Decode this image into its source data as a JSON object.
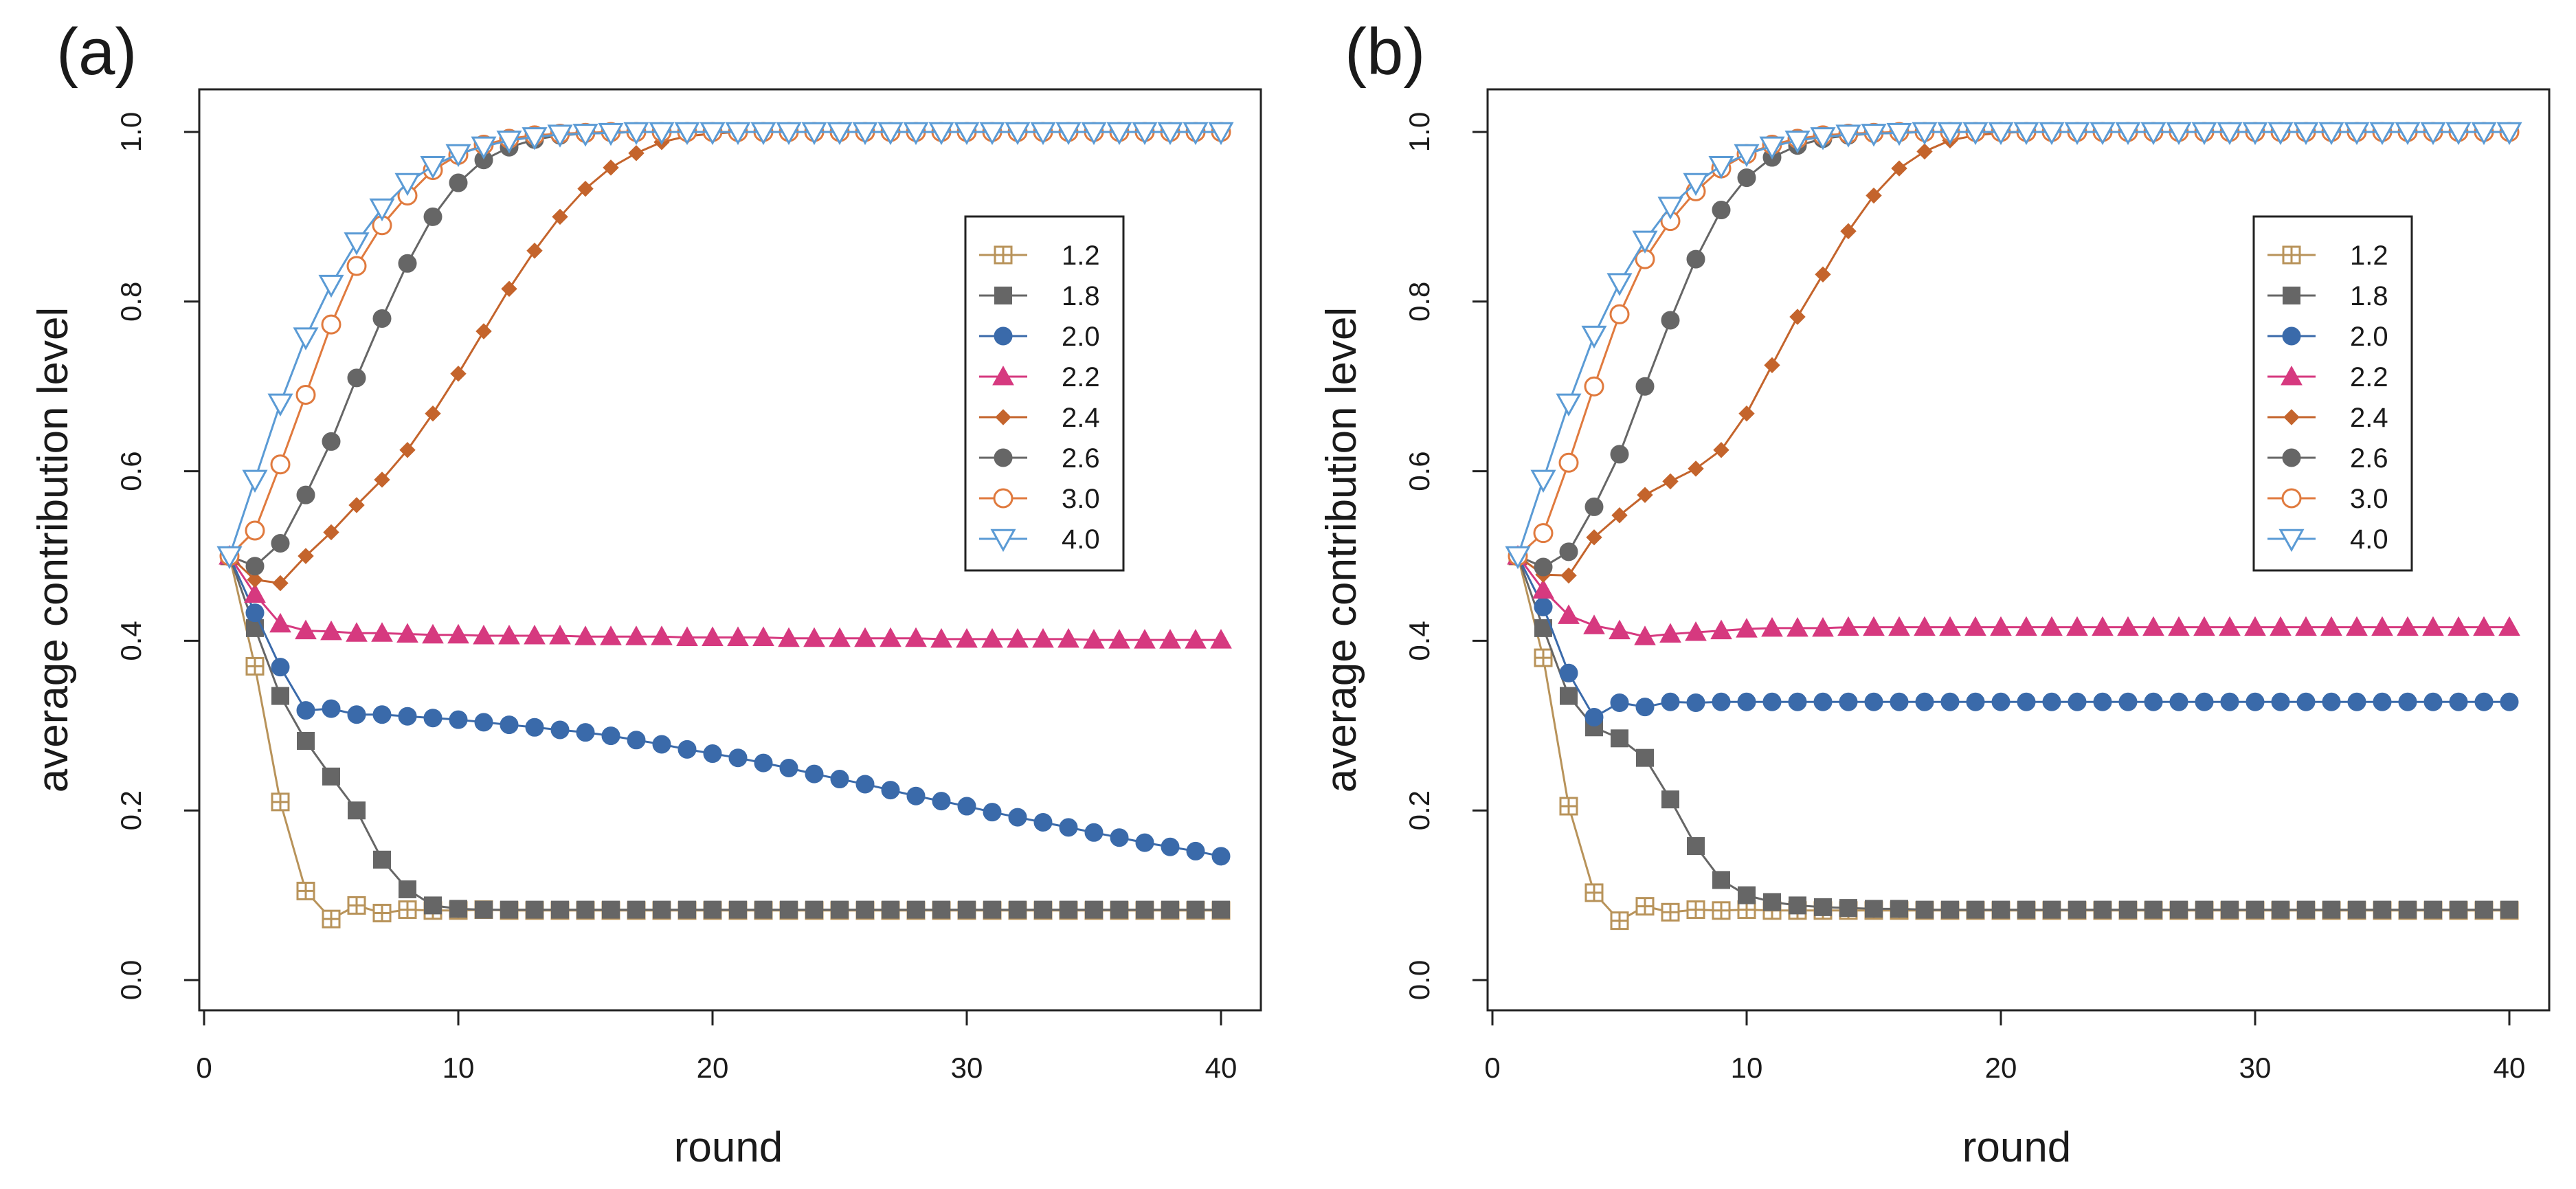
{
  "chart_data": [
    {
      "type": "line",
      "panel_label": "(a)",
      "xlabel": "round",
      "ylabel": "average contribution level",
      "xlim": [
        1,
        40
      ],
      "ylim": [
        0,
        1
      ],
      "x_ticks": [
        "0",
        "10",
        "20",
        "30",
        "40"
      ],
      "y_ticks": [
        "0.0",
        "0.2",
        "0.4",
        "0.6",
        "0.8",
        "1.0"
      ],
      "legend_position": "right",
      "series": [
        {
          "name": "1.2",
          "color": "#b8935a",
          "marker": "square-cross",
          "values": [
            0.5,
            0.37,
            0.21,
            0.105,
            0.072,
            0.088,
            0.079,
            0.083,
            0.082,
            0.082,
            0.083,
            0.082,
            0.082,
            0.082,
            0.082,
            0.082,
            0.082,
            0.082,
            0.082,
            0.082,
            0.082,
            0.082,
            0.082,
            0.082,
            0.082,
            0.082,
            0.082,
            0.082,
            0.082,
            0.082,
            0.082,
            0.082,
            0.082,
            0.082,
            0.082,
            0.082,
            0.082,
            0.082,
            0.082,
            0.082
          ]
        },
        {
          "name": "1.8",
          "color": "#666666",
          "marker": "filled-square",
          "values": [
            0.5,
            0.415,
            0.335,
            0.282,
            0.24,
            0.2,
            0.142,
            0.107,
            0.088,
            0.084,
            0.083,
            0.083,
            0.083,
            0.083,
            0.083,
            0.083,
            0.083,
            0.083,
            0.083,
            0.083,
            0.083,
            0.083,
            0.083,
            0.083,
            0.083,
            0.083,
            0.083,
            0.083,
            0.083,
            0.083,
            0.083,
            0.083,
            0.083,
            0.083,
            0.083,
            0.083,
            0.083,
            0.083,
            0.083,
            0.083
          ]
        },
        {
          "name": "2.0",
          "color": "#3a6aaa",
          "marker": "filled-circle",
          "values": [
            0.5,
            0.433,
            0.369,
            0.318,
            0.32,
            0.313,
            0.313,
            0.311,
            0.309,
            0.307,
            0.304,
            0.301,
            0.298,
            0.295,
            0.292,
            0.288,
            0.283,
            0.278,
            0.272,
            0.267,
            0.262,
            0.256,
            0.25,
            0.243,
            0.237,
            0.231,
            0.224,
            0.217,
            0.211,
            0.205,
            0.198,
            0.192,
            0.186,
            0.18,
            0.174,
            0.168,
            0.162,
            0.157,
            0.152,
            0.146
          ]
        },
        {
          "name": "2.2",
          "color": "#d6397f",
          "marker": "filled-triangle",
          "values": [
            0.5,
            0.455,
            0.42,
            0.412,
            0.411,
            0.409,
            0.409,
            0.408,
            0.407,
            0.407,
            0.406,
            0.406,
            0.406,
            0.406,
            0.405,
            0.405,
            0.405,
            0.405,
            0.404,
            0.404,
            0.404,
            0.404,
            0.403,
            0.403,
            0.403,
            0.403,
            0.403,
            0.403,
            0.402,
            0.402,
            0.402,
            0.402,
            0.402,
            0.402,
            0.401,
            0.401,
            0.401,
            0.401,
            0.401,
            0.401
          ]
        },
        {
          "name": "2.4",
          "color": "#c4642c",
          "marker": "filled-diamond",
          "values": [
            0.5,
            0.472,
            0.468,
            0.5,
            0.528,
            0.56,
            0.59,
            0.625,
            0.668,
            0.715,
            0.765,
            0.815,
            0.86,
            0.9,
            0.933,
            0.958,
            0.975,
            0.988,
            0.995,
            0.998,
            1.0,
            1.0,
            1.0,
            1.0,
            1.0,
            1.0,
            1.0,
            1.0,
            1.0,
            1.0,
            1.0,
            1.0,
            1.0,
            1.0,
            1.0,
            1.0,
            1.0,
            1.0,
            1.0,
            1.0
          ]
        },
        {
          "name": "2.6",
          "color": "#666666",
          "marker": "filled-circle",
          "values": [
            0.5,
            0.488,
            0.515,
            0.572,
            0.635,
            0.71,
            0.78,
            0.845,
            0.9,
            0.94,
            0.967,
            0.982,
            0.991,
            0.996,
            0.998,
            0.999,
            1.0,
            1.0,
            1.0,
            1.0,
            1.0,
            1.0,
            1.0,
            1.0,
            1.0,
            1.0,
            1.0,
            1.0,
            1.0,
            1.0,
            1.0,
            1.0,
            1.0,
            1.0,
            1.0,
            1.0,
            1.0,
            1.0,
            1.0,
            1.0
          ]
        },
        {
          "name": "3.0",
          "color": "#e07a3e",
          "marker": "open-circle",
          "values": [
            0.5,
            0.53,
            0.608,
            0.69,
            0.773,
            0.842,
            0.89,
            0.925,
            0.955,
            0.973,
            0.985,
            0.992,
            0.996,
            0.998,
            0.999,
            1.0,
            1.0,
            1.0,
            1.0,
            1.0,
            1.0,
            1.0,
            1.0,
            1.0,
            1.0,
            1.0,
            1.0,
            1.0,
            1.0,
            1.0,
            1.0,
            1.0,
            1.0,
            1.0,
            1.0,
            1.0,
            1.0,
            1.0,
            1.0,
            1.0
          ]
        },
        {
          "name": "4.0",
          "color": "#5b9bd5",
          "marker": "open-triangle-down",
          "values": [
            0.5,
            0.59,
            0.68,
            0.758,
            0.82,
            0.87,
            0.91,
            0.94,
            0.96,
            0.974,
            0.983,
            0.99,
            0.994,
            0.997,
            0.998,
            0.999,
            1.0,
            1.0,
            1.0,
            1.0,
            1.0,
            1.0,
            1.0,
            1.0,
            1.0,
            1.0,
            1.0,
            1.0,
            1.0,
            1.0,
            1.0,
            1.0,
            1.0,
            1.0,
            1.0,
            1.0,
            1.0,
            1.0,
            1.0,
            1.0
          ]
        }
      ]
    },
    {
      "type": "line",
      "panel_label": "(b)",
      "xlabel": "round",
      "ylabel": "average contribution level",
      "xlim": [
        1,
        40
      ],
      "ylim": [
        0,
        1
      ],
      "x_ticks": [
        "0",
        "10",
        "20",
        "30",
        "40"
      ],
      "y_ticks": [
        "0.0",
        "0.2",
        "0.4",
        "0.6",
        "0.8",
        "1.0"
      ],
      "legend_position": "right",
      "series": [
        {
          "name": "1.2",
          "color": "#b8935a",
          "marker": "square-cross",
          "values": [
            0.5,
            0.38,
            0.205,
            0.103,
            0.07,
            0.087,
            0.08,
            0.083,
            0.082,
            0.083,
            0.082,
            0.082,
            0.082,
            0.082,
            0.082,
            0.082,
            0.082,
            0.082,
            0.082,
            0.082,
            0.082,
            0.082,
            0.082,
            0.082,
            0.082,
            0.082,
            0.082,
            0.082,
            0.082,
            0.082,
            0.082,
            0.082,
            0.082,
            0.082,
            0.082,
            0.082,
            0.082,
            0.082,
            0.082,
            0.082
          ]
        },
        {
          "name": "1.8",
          "color": "#666666",
          "marker": "filled-square",
          "values": [
            0.5,
            0.415,
            0.335,
            0.298,
            0.285,
            0.262,
            0.213,
            0.158,
            0.118,
            0.1,
            0.092,
            0.088,
            0.086,
            0.085,
            0.084,
            0.084,
            0.083,
            0.083,
            0.083,
            0.083,
            0.083,
            0.083,
            0.083,
            0.083,
            0.083,
            0.083,
            0.083,
            0.083,
            0.083,
            0.083,
            0.083,
            0.083,
            0.083,
            0.083,
            0.083,
            0.083,
            0.083,
            0.083,
            0.083,
            0.083
          ]
        },
        {
          "name": "2.0",
          "color": "#3a6aaa",
          "marker": "filled-circle",
          "values": [
            0.5,
            0.44,
            0.362,
            0.31,
            0.327,
            0.322,
            0.328,
            0.327,
            0.328,
            0.328,
            0.328,
            0.328,
            0.328,
            0.328,
            0.328,
            0.328,
            0.328,
            0.328,
            0.328,
            0.328,
            0.328,
            0.328,
            0.328,
            0.328,
            0.328,
            0.328,
            0.328,
            0.328,
            0.328,
            0.328,
            0.328,
            0.328,
            0.328,
            0.328,
            0.328,
            0.328,
            0.328,
            0.328,
            0.328,
            0.328
          ]
        },
        {
          "name": "2.2",
          "color": "#d6397f",
          "marker": "filled-triangle",
          "values": [
            0.5,
            0.46,
            0.43,
            0.418,
            0.412,
            0.405,
            0.408,
            0.41,
            0.412,
            0.414,
            0.415,
            0.415,
            0.415,
            0.416,
            0.416,
            0.416,
            0.416,
            0.416,
            0.416,
            0.416,
            0.416,
            0.416,
            0.416,
            0.416,
            0.416,
            0.416,
            0.416,
            0.416,
            0.416,
            0.416,
            0.416,
            0.416,
            0.416,
            0.416,
            0.416,
            0.416,
            0.416,
            0.416,
            0.416,
            0.416
          ]
        },
        {
          "name": "2.4",
          "color": "#c4642c",
          "marker": "filled-diamond",
          "values": [
            0.5,
            0.478,
            0.477,
            0.522,
            0.548,
            0.572,
            0.588,
            0.603,
            0.625,
            0.668,
            0.725,
            0.782,
            0.832,
            0.883,
            0.925,
            0.957,
            0.977,
            0.99,
            0.996,
            0.999,
            1.0,
            1.0,
            1.0,
            1.0,
            1.0,
            1.0,
            1.0,
            1.0,
            1.0,
            1.0,
            1.0,
            1.0,
            1.0,
            1.0,
            1.0,
            1.0,
            1.0,
            1.0,
            1.0,
            1.0
          ]
        },
        {
          "name": "2.6",
          "color": "#666666",
          "marker": "filled-circle",
          "values": [
            0.5,
            0.487,
            0.505,
            0.558,
            0.62,
            0.7,
            0.778,
            0.85,
            0.908,
            0.946,
            0.97,
            0.984,
            0.992,
            0.996,
            0.998,
            0.999,
            1.0,
            1.0,
            1.0,
            1.0,
            1.0,
            1.0,
            1.0,
            1.0,
            1.0,
            1.0,
            1.0,
            1.0,
            1.0,
            1.0,
            1.0,
            1.0,
            1.0,
            1.0,
            1.0,
            1.0,
            1.0,
            1.0,
            1.0,
            1.0
          ]
        },
        {
          "name": "3.0",
          "color": "#e07a3e",
          "marker": "open-circle",
          "values": [
            0.5,
            0.527,
            0.61,
            0.7,
            0.785,
            0.85,
            0.895,
            0.93,
            0.957,
            0.974,
            0.985,
            0.992,
            0.996,
            0.998,
            0.999,
            1.0,
            1.0,
            1.0,
            1.0,
            1.0,
            1.0,
            1.0,
            1.0,
            1.0,
            1.0,
            1.0,
            1.0,
            1.0,
            1.0,
            1.0,
            1.0,
            1.0,
            1.0,
            1.0,
            1.0,
            1.0,
            1.0,
            1.0,
            1.0,
            1.0
          ]
        },
        {
          "name": "4.0",
          "color": "#5b9bd5",
          "marker": "open-triangle-down",
          "values": [
            0.5,
            0.59,
            0.68,
            0.76,
            0.822,
            0.872,
            0.912,
            0.94,
            0.96,
            0.974,
            0.983,
            0.99,
            0.994,
            0.997,
            0.998,
            0.999,
            1.0,
            1.0,
            1.0,
            1.0,
            1.0,
            1.0,
            1.0,
            1.0,
            1.0,
            1.0,
            1.0,
            1.0,
            1.0,
            1.0,
            1.0,
            1.0,
            1.0,
            1.0,
            1.0,
            1.0,
            1.0,
            1.0,
            1.0,
            1.0
          ]
        }
      ]
    }
  ]
}
